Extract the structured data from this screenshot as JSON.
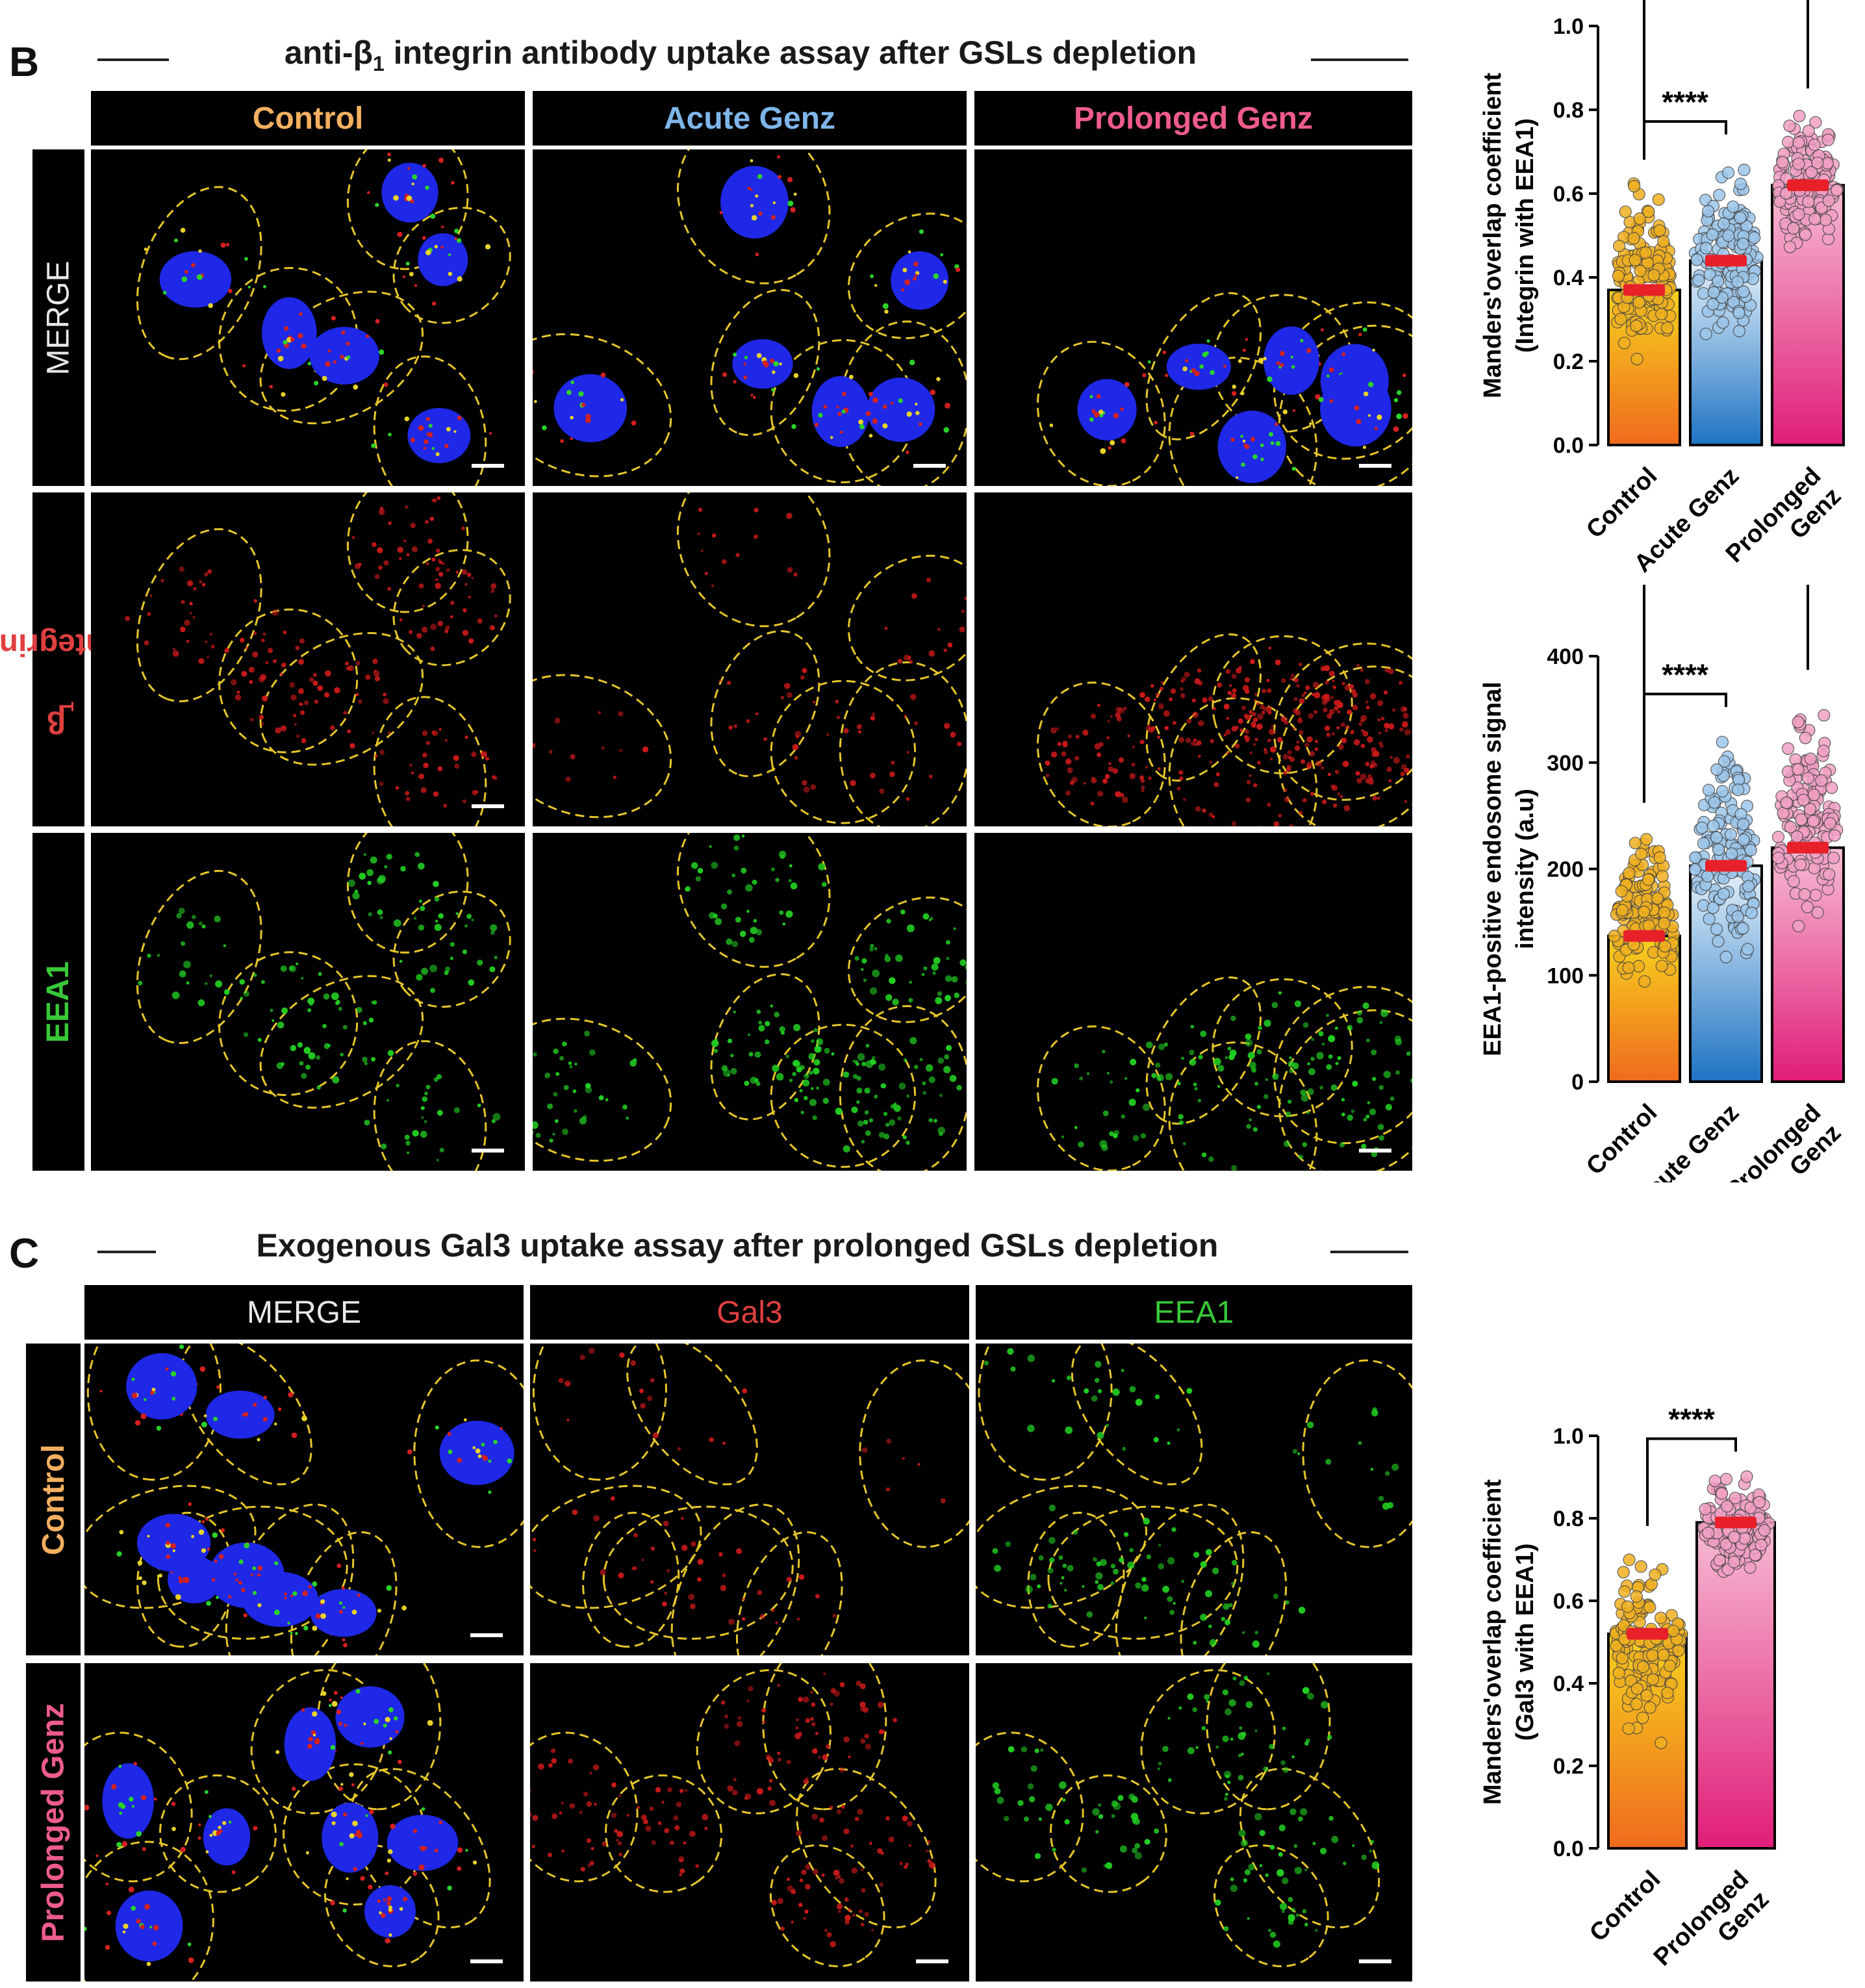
{
  "panels": {
    "B": {
      "letter": "B",
      "title": "anti-β",
      "title_sub": "1",
      "title_rest": " integrin antibody uptake assay after GSLs depletion",
      "columns": [
        {
          "label": "Control",
          "color": "#f4b060"
        },
        {
          "label": "Acute Genz",
          "color": "#7fb6ea"
        },
        {
          "label": "Prolonged Genz",
          "color": "#ee5c8c"
        }
      ],
      "rows": [
        {
          "label": "MERGE",
          "color": "#e8e8e8"
        },
        {
          "label": "β",
          "label_sub": "1",
          "label_rest": " integrin",
          "color": "#e04040"
        },
        {
          "label": "EEA1",
          "color": "#38c838"
        }
      ]
    },
    "C": {
      "letter": "C",
      "title": "Exogenous Gal3 uptake assay after prolonged GSLs depletion",
      "columns": [
        {
          "label": "MERGE",
          "color": "#e8e8e8"
        },
        {
          "label": "Gal3",
          "color": "#e04040"
        },
        {
          "label": "EEA1",
          "color": "#38c838"
        }
      ],
      "rows": [
        {
          "label": "Control",
          "color": "#f4b060"
        },
        {
          "label": "Prolonged Genz",
          "color": "#ee5c8c"
        }
      ]
    }
  },
  "colors": {
    "control_top": "#f7d21e",
    "control_bottom": "#ef6a1e",
    "acute_top": "#e6f2fb",
    "acute_bottom": "#1e73c2",
    "prolonged_top": "#f7bcd4",
    "prolonged_bottom": "#e01d78",
    "mean_marker": "#e8202a",
    "nucleus": "#1e28e6",
    "outline": "#e6c62a"
  },
  "chart_data": [
    {
      "type": "bar",
      "ylabel": "Manders'overlap coefficient",
      "ylabel2": "(Integrin with EEA1)",
      "categories": [
        "Control",
        "Acute Genz",
        "Prolonged Genz"
      ],
      "category_lines": [
        [
          "Control"
        ],
        [
          "Acute Genz"
        ],
        [
          "Prolonged",
          "Genz"
        ]
      ],
      "values": [
        0.37,
        0.44,
        0.62
      ],
      "ranges": [
        [
          0.17,
          0.65
        ],
        [
          0.19,
          0.71
        ],
        [
          0.44,
          0.82
        ]
      ],
      "ylim": [
        0,
        1.0
      ],
      "yticks": [
        "0.0",
        "0.2",
        "0.4",
        "0.6",
        "0.8",
        "1.0"
      ],
      "significance": [
        {
          "from": 0,
          "to": 1,
          "label": "****"
        },
        {
          "from": 0,
          "to": 2,
          "label": "****"
        }
      ]
    },
    {
      "type": "bar",
      "ylabel": "EEA1-positive endosome signal",
      "ylabel2": "intensity (a.u)",
      "categories": [
        "Control",
        "Acute Genz",
        "Prolonged Genz"
      ],
      "category_lines": [
        [
          "Control"
        ],
        [
          "Acute Genz"
        ],
        [
          "Prolonged",
          "Genz"
        ]
      ],
      "values": [
        137,
        203,
        220
      ],
      "ranges": [
        [
          75,
          250
        ],
        [
          95,
          340
        ],
        [
          120,
          375
        ]
      ],
      "ylim": [
        0,
        400
      ],
      "yticks": [
        "0",
        "100",
        "200",
        "300",
        "400"
      ],
      "significance": [
        {
          "from": 0,
          "to": 1,
          "label": "****"
        },
        {
          "from": 0,
          "to": 2,
          "label": "****"
        }
      ]
    },
    {
      "type": "bar",
      "ylabel": "Manders'overlap coefficient",
      "ylabel2": "(Gal3 with EEA1)",
      "categories": [
        "Control",
        "Prolonged Genz"
      ],
      "category_lines": [
        [
          "Control"
        ],
        [
          "Prolonged",
          "Genz"
        ]
      ],
      "values": [
        0.52,
        0.79
      ],
      "ranges": [
        [
          0.22,
          0.75
        ],
        [
          0.62,
          0.93
        ]
      ],
      "ylim": [
        0,
        1.0
      ],
      "yticks": [
        "0.0",
        "0.2",
        "0.4",
        "0.6",
        "0.8",
        "1.0"
      ],
      "significance": [
        {
          "from": 0,
          "to": 1,
          "label": "****"
        }
      ]
    }
  ]
}
